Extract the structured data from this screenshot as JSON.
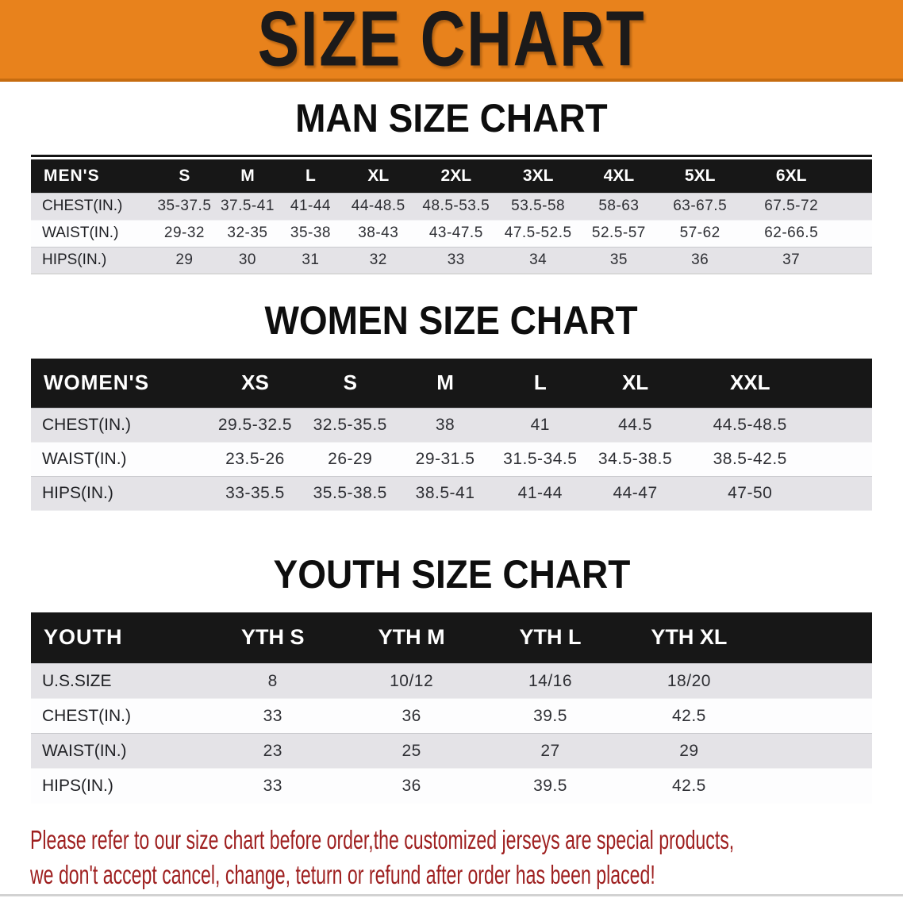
{
  "banner": {
    "title": "SIZE CHART",
    "bg_color": "#E8821C",
    "bg_border_color": "#C66C10"
  },
  "sections": [
    {
      "title": "MAN SIZE CHART",
      "header_label": "MEN'S",
      "columns": [
        "S",
        "M",
        "L",
        "XL",
        "2XL",
        "3XL",
        "4XL",
        "5XL",
        "6XL"
      ],
      "rows": [
        {
          "label": "CHEST(IN.)",
          "values": [
            "35-37.5",
            "37.5-41",
            "41-44",
            "44-48.5",
            "48.5-53.5",
            "53.5-58",
            "58-63",
            "63-67.5",
            "67.5-72"
          ]
        },
        {
          "label": "WAIST(IN.)",
          "values": [
            "29-32",
            "32-35",
            "35-38",
            "38-43",
            "43-47.5",
            "47.5-52.5",
            "52.5-57",
            "57-62",
            "62-66.5"
          ]
        },
        {
          "label": "HIPS(IN.)",
          "values": [
            "29",
            "30",
            "31",
            "32",
            "33",
            "34",
            "35",
            "36",
            "37"
          ]
        }
      ]
    },
    {
      "title": "WOMEN SIZE CHART",
      "header_label": "WOMEN'S",
      "columns": [
        "XS",
        "S",
        "M",
        "L",
        "XL",
        "XXL"
      ],
      "rows": [
        {
          "label": "CHEST(IN.)",
          "values": [
            "29.5-32.5",
            "32.5-35.5",
            "38",
            "41",
            "44.5",
            "44.5-48.5"
          ]
        },
        {
          "label": "WAIST(IN.)",
          "values": [
            "23.5-26",
            "26-29",
            "29-31.5",
            "31.5-34.5",
            "34.5-38.5",
            "38.5-42.5"
          ]
        },
        {
          "label": "HIPS(IN.)",
          "values": [
            "33-35.5",
            "35.5-38.5",
            "38.5-41",
            "41-44",
            "44-47",
            "47-50"
          ]
        }
      ]
    },
    {
      "title": "YOUTH SIZE CHART",
      "header_label": "YOUTH",
      "columns": [
        "YTH S",
        "YTH M",
        "YTH L",
        "YTH XL"
      ],
      "rows": [
        {
          "label": "U.S.SIZE",
          "values": [
            "8",
            "10/12",
            "14/16",
            "18/20"
          ]
        },
        {
          "label": "CHEST(IN.)",
          "values": [
            "33",
            "36",
            "39.5",
            "42.5"
          ]
        },
        {
          "label": "WAIST(IN.)",
          "values": [
            "23",
            "25",
            "27",
            "29"
          ]
        },
        {
          "label": "HIPS(IN.)",
          "values": [
            "33",
            "36",
            "39.5",
            "42.5"
          ]
        }
      ]
    }
  ],
  "disclaimer": {
    "line1": "Please refer to our size chart before order,the customized jerseys are special products,",
    "line2": "we don't accept cancel, change, teturn or refund after order has been placed!",
    "color": "#9E1F1F"
  },
  "table_style": {
    "header_bg": "#171717",
    "header_text": "#FFFFFF",
    "row_gray": "#E4E3E7",
    "row_white": "#FDFDFE",
    "value_text": "#2E2F34"
  }
}
